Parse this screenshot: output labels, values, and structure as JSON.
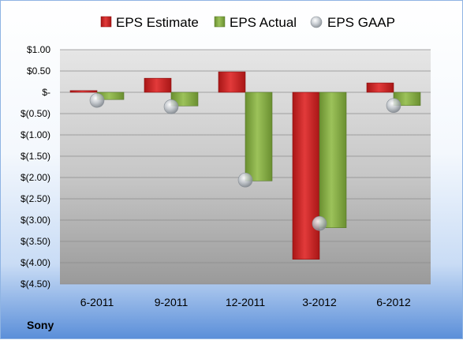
{
  "company": "Sony",
  "colors": {
    "estimate": "#d42a2a",
    "actual": "#8cb34a",
    "gaap": "#b8bec4"
  },
  "chart_data": {
    "type": "bar",
    "categories": [
      "6-2011",
      "9-2011",
      "12-2011",
      "3-2012",
      "6-2012"
    ],
    "series": [
      {
        "name": "EPS Estimate",
        "kind": "bar",
        "values": [
          0.04,
          0.33,
          0.48,
          -3.92,
          0.22
        ]
      },
      {
        "name": "EPS Actual",
        "kind": "bar",
        "values": [
          -0.17,
          -0.32,
          -2.08,
          -3.18,
          -0.31
        ]
      },
      {
        "name": "EPS GAAP",
        "kind": "marker",
        "values": [
          -0.19,
          -0.34,
          -2.06,
          -3.08,
          -0.31
        ]
      }
    ],
    "ylim": [
      -4.5,
      1.0
    ],
    "yticks": [
      1.0,
      0.5,
      0,
      -0.5,
      -1.0,
      -1.5,
      -2.0,
      -2.5,
      -3.0,
      -3.5,
      -4.0,
      -4.5
    ],
    "ytick_labels": [
      "$1.00",
      "$0.50",
      "$-",
      "$(0.50)",
      "$(1.00)",
      "$(1.50)",
      "$(2.00)",
      "$(2.50)",
      "$(3.00)",
      "$(3.50)",
      "$(4.00)",
      "$(4.50)"
    ],
    "grid": true,
    "legend": "top"
  }
}
